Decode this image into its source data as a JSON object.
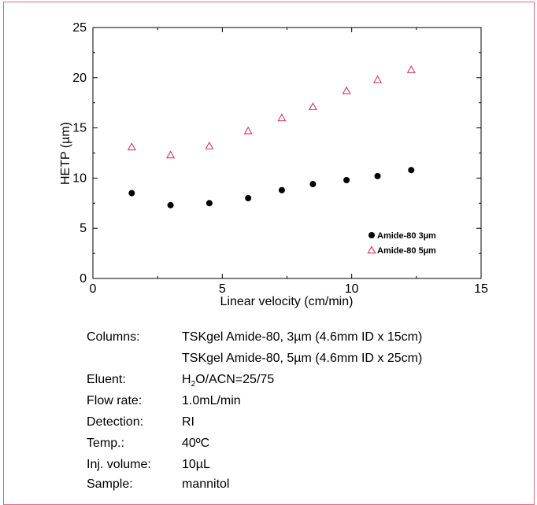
{
  "caption": "",
  "chart_data": {
    "type": "scatter",
    "title": "",
    "xlabel": "Linear velocity (cm/min)",
    "ylabel": "HETP (µm)",
    "xlim": [
      0,
      15
    ],
    "ylim": [
      0,
      25
    ],
    "x_ticks": [
      "0",
      "5",
      "10",
      "15"
    ],
    "y_ticks": [
      "0",
      "5",
      "10",
      "15",
      "20",
      "25"
    ],
    "grid": false,
    "legend_position": "bottom-right",
    "series": [
      {
        "name": "Amide-80 3µm",
        "marker": "filled-circle",
        "color": "#000000",
        "points": [
          {
            "x": 1.5,
            "y": 8.5
          },
          {
            "x": 3.0,
            "y": 7.3
          },
          {
            "x": 4.5,
            "y": 7.5
          },
          {
            "x": 6.0,
            "y": 8.0
          },
          {
            "x": 7.3,
            "y": 8.8
          },
          {
            "x": 8.5,
            "y": 9.4
          },
          {
            "x": 9.8,
            "y": 9.8
          },
          {
            "x": 11.0,
            "y": 10.2
          },
          {
            "x": 12.3,
            "y": 10.8
          }
        ]
      },
      {
        "name": "Amide-80 5µm",
        "marker": "open-triangle",
        "color": "#d6336a",
        "points": [
          {
            "x": 1.5,
            "y": 13.1
          },
          {
            "x": 3.0,
            "y": 12.3
          },
          {
            "x": 4.5,
            "y": 13.2
          },
          {
            "x": 6.0,
            "y": 14.7
          },
          {
            "x": 7.3,
            "y": 16.0
          },
          {
            "x": 8.5,
            "y": 17.1
          },
          {
            "x": 9.8,
            "y": 18.7
          },
          {
            "x": 11.0,
            "y": 19.8
          },
          {
            "x": 12.3,
            "y": 20.8
          }
        ]
      }
    ]
  },
  "conditions": {
    "columns_label": "Columns:",
    "columns_value_1": "TSKgel Amide-80, 3µm (4.6mm ID x 15cm)",
    "columns_value_2": "TSKgel Amide-80, 5µm (4.6mm ID x 25cm)",
    "eluent_label": "Eluent:",
    "eluent_h": "H",
    "eluent_sub": "2",
    "eluent_rest": "O/ACN=25/75",
    "flow_label": "Flow rate:",
    "flow_value": "1.0mL/min",
    "detection_label": "Detection:",
    "detection_value": "RI",
    "temp_label": "Temp.:",
    "temp_value": "40ºC",
    "inj_label": "Inj. volume:",
    "inj_value": "10µL",
    "sample_label": "Sample:",
    "sample_value": "mannitol"
  }
}
